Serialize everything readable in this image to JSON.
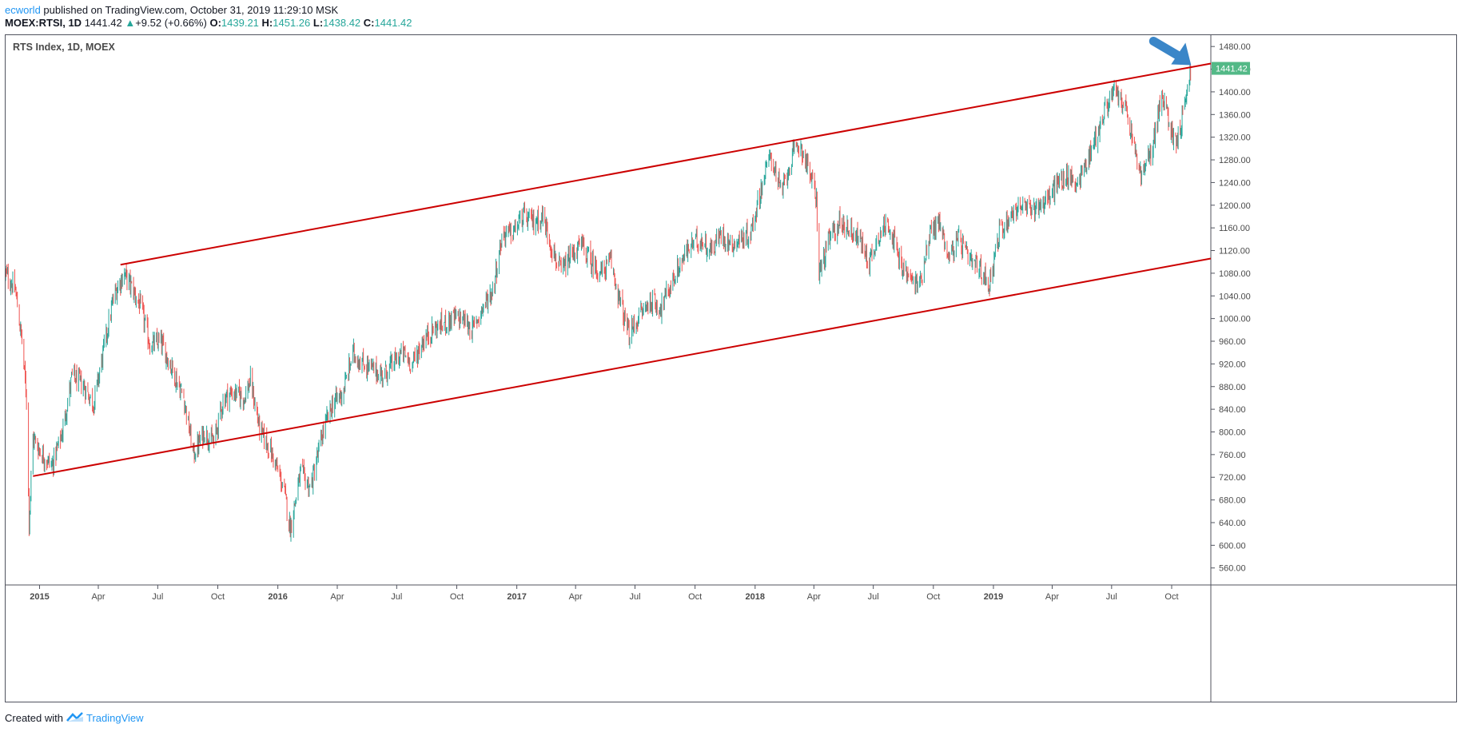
{
  "header": {
    "author": "ecworld",
    "published_text": " published on TradingView.com, October 31, 2019 11:29:10 MSK",
    "symbol": "MOEX:RTSI, 1D",
    "last_price": "1441.42",
    "change_arrow": "▲",
    "change": "+9.52 (+0.66%)",
    "open_label": "O:",
    "open": "1439.21",
    "high_label": "H:",
    "high": "1451.26",
    "low_label": "L:",
    "low": "1438.42",
    "close_label": "C:",
    "close": "1441.42"
  },
  "footer": {
    "created_with": "Created with",
    "brand": "TradingView"
  },
  "chart_data": {
    "type": "candlestick",
    "title": "RTS Index, 1D, MOEX",
    "last_price_label": "1441.42",
    "colors": {
      "up": "#26a69a",
      "down": "#ef5350",
      "trendline": "#cc0000",
      "annotation_arrow": "#3a86c8",
      "price_badge": "#53b987"
    },
    "xlim": [
      "2014-11-10",
      "2019-11-30"
    ],
    "ylim": [
      530,
      1500
    ],
    "y_ticks": [
      "560.00",
      "600.00",
      "640.00",
      "680.00",
      "720.00",
      "760.00",
      "800.00",
      "840.00",
      "880.00",
      "920.00",
      "960.00",
      "1000.00",
      "1040.00",
      "1080.00",
      "1120.00",
      "1160.00",
      "1200.00",
      "1240.00",
      "1280.00",
      "1320.00",
      "1360.00",
      "1400.00",
      "1440.00",
      "1480.00"
    ],
    "x_ticks": [
      {
        "date": "2015-01-01",
        "label": "2015",
        "bold": true
      },
      {
        "date": "2015-04-01",
        "label": "Apr"
      },
      {
        "date": "2015-07-01",
        "label": "Jul"
      },
      {
        "date": "2015-10-01",
        "label": "Oct"
      },
      {
        "date": "2016-01-01",
        "label": "2016",
        "bold": true
      },
      {
        "date": "2016-04-01",
        "label": "Apr"
      },
      {
        "date": "2016-07-01",
        "label": "Jul"
      },
      {
        "date": "2016-10-01",
        "label": "Oct"
      },
      {
        "date": "2017-01-01",
        "label": "2017",
        "bold": true
      },
      {
        "date": "2017-04-01",
        "label": "Apr"
      },
      {
        "date": "2017-07-01",
        "label": "Jul"
      },
      {
        "date": "2017-10-01",
        "label": "Oct"
      },
      {
        "date": "2018-01-01",
        "label": "2018",
        "bold": true
      },
      {
        "date": "2018-04-01",
        "label": "Apr"
      },
      {
        "date": "2018-07-01",
        "label": "Jul"
      },
      {
        "date": "2018-10-01",
        "label": "Oct"
      },
      {
        "date": "2019-01-01",
        "label": "2019",
        "bold": true
      },
      {
        "date": "2019-04-01",
        "label": "Apr"
      },
      {
        "date": "2019-07-01",
        "label": "Jul"
      },
      {
        "date": "2019-10-01",
        "label": "Oct"
      }
    ],
    "price_path": [
      {
        "date": "2014-11-10",
        "close": 1080
      },
      {
        "date": "2014-11-25",
        "close": 1050
      },
      {
        "date": "2014-12-05",
        "close": 960
      },
      {
        "date": "2014-12-12",
        "close": 860
      },
      {
        "date": "2014-12-16",
        "close": 640
      },
      {
        "date": "2014-12-22",
        "close": 790
      },
      {
        "date": "2015-01-05",
        "close": 760
      },
      {
        "date": "2015-01-20",
        "close": 740
      },
      {
        "date": "2015-02-05",
        "close": 800
      },
      {
        "date": "2015-02-20",
        "close": 900
      },
      {
        "date": "2015-03-10",
        "close": 880
      },
      {
        "date": "2015-03-25",
        "close": 850
      },
      {
        "date": "2015-04-10",
        "close": 950
      },
      {
        "date": "2015-04-25",
        "close": 1040
      },
      {
        "date": "2015-05-10",
        "close": 1080
      },
      {
        "date": "2015-05-20",
        "close": 1060
      },
      {
        "date": "2015-06-05",
        "close": 1020
      },
      {
        "date": "2015-06-20",
        "close": 950
      },
      {
        "date": "2015-07-05",
        "close": 960
      },
      {
        "date": "2015-07-20",
        "close": 920
      },
      {
        "date": "2015-08-10",
        "close": 860
      },
      {
        "date": "2015-08-25",
        "close": 760
      },
      {
        "date": "2015-09-10",
        "close": 800
      },
      {
        "date": "2015-09-25",
        "close": 780
      },
      {
        "date": "2015-10-10",
        "close": 860
      },
      {
        "date": "2015-10-25",
        "close": 870
      },
      {
        "date": "2015-11-10",
        "close": 860
      },
      {
        "date": "2015-11-20",
        "close": 890
      },
      {
        "date": "2015-12-05",
        "close": 800
      },
      {
        "date": "2015-12-20",
        "close": 770
      },
      {
        "date": "2016-01-10",
        "close": 700
      },
      {
        "date": "2016-01-20",
        "close": 630
      },
      {
        "date": "2016-02-05",
        "close": 730
      },
      {
        "date": "2016-02-20",
        "close": 700
      },
      {
        "date": "2016-03-10",
        "close": 800
      },
      {
        "date": "2016-03-25",
        "close": 850
      },
      {
        "date": "2016-04-10",
        "close": 870
      },
      {
        "date": "2016-04-25",
        "close": 940
      },
      {
        "date": "2016-05-10",
        "close": 920
      },
      {
        "date": "2016-05-25",
        "close": 910
      },
      {
        "date": "2016-06-10",
        "close": 900
      },
      {
        "date": "2016-06-25",
        "close": 920
      },
      {
        "date": "2016-07-10",
        "close": 940
      },
      {
        "date": "2016-07-25",
        "close": 920
      },
      {
        "date": "2016-08-10",
        "close": 960
      },
      {
        "date": "2016-08-25",
        "close": 980
      },
      {
        "date": "2016-09-10",
        "close": 990
      },
      {
        "date": "2016-09-25",
        "close": 1000
      },
      {
        "date": "2016-10-10",
        "close": 1000
      },
      {
        "date": "2016-10-25",
        "close": 980
      },
      {
        "date": "2016-11-10",
        "close": 1020
      },
      {
        "date": "2016-11-25",
        "close": 1050
      },
      {
        "date": "2016-12-10",
        "close": 1150
      },
      {
        "date": "2016-12-25",
        "close": 1150
      },
      {
        "date": "2017-01-10",
        "close": 1180
      },
      {
        "date": "2017-01-25",
        "close": 1170
      },
      {
        "date": "2017-02-10",
        "close": 1180
      },
      {
        "date": "2017-02-25",
        "close": 1120
      },
      {
        "date": "2017-03-10",
        "close": 1080
      },
      {
        "date": "2017-03-25",
        "close": 1110
      },
      {
        "date": "2017-04-10",
        "close": 1130
      },
      {
        "date": "2017-04-25",
        "close": 1100
      },
      {
        "date": "2017-05-10",
        "close": 1080
      },
      {
        "date": "2017-05-25",
        "close": 1100
      },
      {
        "date": "2017-06-10",
        "close": 1020
      },
      {
        "date": "2017-06-22",
        "close": 970
      },
      {
        "date": "2017-07-10",
        "close": 1010
      },
      {
        "date": "2017-07-25",
        "close": 1030
      },
      {
        "date": "2017-08-10",
        "close": 1020
      },
      {
        "date": "2017-08-25",
        "close": 1060
      },
      {
        "date": "2017-09-10",
        "close": 1100
      },
      {
        "date": "2017-09-25",
        "close": 1130
      },
      {
        "date": "2017-10-10",
        "close": 1140
      },
      {
        "date": "2017-10-25",
        "close": 1120
      },
      {
        "date": "2017-11-10",
        "close": 1150
      },
      {
        "date": "2017-11-25",
        "close": 1130
      },
      {
        "date": "2017-12-10",
        "close": 1140
      },
      {
        "date": "2017-12-25",
        "close": 1150
      },
      {
        "date": "2018-01-10",
        "close": 1230
      },
      {
        "date": "2018-01-25",
        "close": 1290
      },
      {
        "date": "2018-02-10",
        "close": 1220
      },
      {
        "date": "2018-02-25",
        "close": 1280
      },
      {
        "date": "2018-03-10",
        "close": 1310
      },
      {
        "date": "2018-03-25",
        "close": 1260
      },
      {
        "date": "2018-04-05",
        "close": 1210
      },
      {
        "date": "2018-04-09",
        "close": 1080
      },
      {
        "date": "2018-04-25",
        "close": 1140
      },
      {
        "date": "2018-05-10",
        "close": 1170
      },
      {
        "date": "2018-05-25",
        "close": 1160
      },
      {
        "date": "2018-06-10",
        "close": 1140
      },
      {
        "date": "2018-06-25",
        "close": 1100
      },
      {
        "date": "2018-07-10",
        "close": 1150
      },
      {
        "date": "2018-07-25",
        "close": 1170
      },
      {
        "date": "2018-08-10",
        "close": 1100
      },
      {
        "date": "2018-08-25",
        "close": 1070
      },
      {
        "date": "2018-09-10",
        "close": 1060
      },
      {
        "date": "2018-09-25",
        "close": 1150
      },
      {
        "date": "2018-10-10",
        "close": 1170
      },
      {
        "date": "2018-10-25",
        "close": 1110
      },
      {
        "date": "2018-11-10",
        "close": 1140
      },
      {
        "date": "2018-11-25",
        "close": 1100
      },
      {
        "date": "2018-12-10",
        "close": 1090
      },
      {
        "date": "2018-12-25",
        "close": 1060
      },
      {
        "date": "2019-01-10",
        "close": 1150
      },
      {
        "date": "2019-01-25",
        "close": 1180
      },
      {
        "date": "2019-02-10",
        "close": 1200
      },
      {
        "date": "2019-02-25",
        "close": 1190
      },
      {
        "date": "2019-03-10",
        "close": 1200
      },
      {
        "date": "2019-03-25",
        "close": 1210
      },
      {
        "date": "2019-04-10",
        "close": 1240
      },
      {
        "date": "2019-04-25",
        "close": 1250
      },
      {
        "date": "2019-05-10",
        "close": 1240
      },
      {
        "date": "2019-05-25",
        "close": 1280
      },
      {
        "date": "2019-06-10",
        "close": 1330
      },
      {
        "date": "2019-06-25",
        "close": 1380
      },
      {
        "date": "2019-07-05",
        "close": 1400
      },
      {
        "date": "2019-07-20",
        "close": 1380
      },
      {
        "date": "2019-08-05",
        "close": 1300
      },
      {
        "date": "2019-08-15",
        "close": 1250
      },
      {
        "date": "2019-08-30",
        "close": 1290
      },
      {
        "date": "2019-09-15",
        "close": 1390
      },
      {
        "date": "2019-09-25",
        "close": 1360
      },
      {
        "date": "2019-10-05",
        "close": 1310
      },
      {
        "date": "2019-10-15",
        "close": 1340
      },
      {
        "date": "2019-10-25",
        "close": 1410
      },
      {
        "date": "2019-10-31",
        "close": 1441.42
      }
    ],
    "trendlines": [
      {
        "name": "upper",
        "start": {
          "date": "2015-05-05",
          "value": 1095
        },
        "end": {
          "date": "2019-11-30",
          "value": 1450
        }
      },
      {
        "name": "lower",
        "start": {
          "date": "2014-12-22",
          "value": 722
        },
        "end": {
          "date": "2019-11-30",
          "value": 1106
        }
      }
    ],
    "annotation": {
      "type": "arrow",
      "points_to": {
        "date": "2019-11-01",
        "value": 1450
      }
    }
  }
}
